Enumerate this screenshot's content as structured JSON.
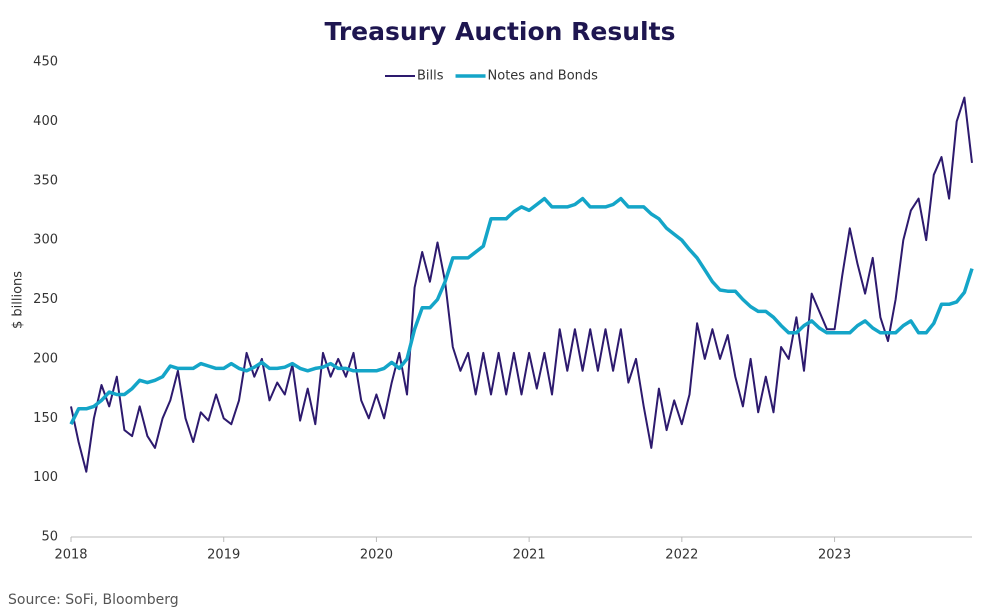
{
  "chart_data": {
    "type": "line",
    "title": "Treasury Auction Results",
    "ylabel": "$ billions",
    "source": "Source: SoFi, Bloomberg",
    "x": [
      2018.0,
      2018.05,
      2018.1,
      2018.15,
      2018.2,
      2018.25,
      2018.3,
      2018.35,
      2018.4,
      2018.45,
      2018.5,
      2018.55,
      2018.6,
      2018.65,
      2018.7,
      2018.75,
      2018.8,
      2018.85,
      2018.9,
      2018.95,
      2019.0,
      2019.05,
      2019.1,
      2019.15,
      2019.2,
      2019.25,
      2019.3,
      2019.35,
      2019.4,
      2019.45,
      2019.5,
      2019.55,
      2019.6,
      2019.65,
      2019.7,
      2019.75,
      2019.8,
      2019.85,
      2019.9,
      2019.95,
      2020.0,
      2020.05,
      2020.1,
      2020.15,
      2020.2,
      2020.25,
      2020.3,
      2020.35,
      2020.4,
      2020.45,
      2020.5,
      2020.55,
      2020.6,
      2020.65,
      2020.7,
      2020.75,
      2020.8,
      2020.85,
      2020.9,
      2020.95,
      2021.0,
      2021.05,
      2021.1,
      2021.15,
      2021.2,
      2021.25,
      2021.3,
      2021.35,
      2021.4,
      2021.45,
      2021.5,
      2021.55,
      2021.6,
      2021.65,
      2021.7,
      2021.75,
      2021.8,
      2021.85,
      2021.9,
      2021.95,
      2022.0,
      2022.05,
      2022.1,
      2022.15,
      2022.2,
      2022.25,
      2022.3,
      2022.35,
      2022.4,
      2022.45,
      2022.5,
      2022.55,
      2022.6,
      2022.65,
      2022.7,
      2022.75,
      2022.8,
      2022.85,
      2022.9,
      2022.95,
      2023.0,
      2023.05,
      2023.1,
      2023.15,
      2023.2,
      2023.25,
      2023.3,
      2023.35,
      2023.4,
      2023.45,
      2023.5,
      2023.55,
      2023.6,
      2023.65,
      2023.7,
      2023.75,
      2023.8,
      2023.85,
      2023.9
    ],
    "series": [
      {
        "name": "Bills",
        "color": "#2d1a6e",
        "width": 2,
        "values": [
          160,
          130,
          105,
          150,
          178,
          160,
          185,
          140,
          135,
          160,
          135,
          125,
          150,
          165,
          190,
          150,
          130,
          155,
          148,
          170,
          150,
          145,
          165,
          205,
          185,
          200,
          165,
          180,
          170,
          195,
          148,
          175,
          145,
          205,
          185,
          200,
          185,
          205,
          165,
          150,
          170,
          150,
          180,
          205,
          170,
          260,
          290,
          265,
          298,
          265,
          210,
          190,
          205,
          170,
          205,
          170,
          205,
          170,
          205,
          170,
          205,
          175,
          205,
          170,
          225,
          190,
          225,
          190,
          225,
          190,
          225,
          190,
          225,
          180,
          200,
          160,
          125,
          175,
          140,
          165,
          145,
          170,
          230,
          200,
          225,
          200,
          220,
          185,
          160,
          200,
          155,
          185,
          155,
          210,
          200,
          235,
          190,
          255,
          240,
          225,
          225,
          270,
          310,
          280,
          255,
          285,
          235,
          215,
          250,
          300,
          325,
          335,
          300,
          355,
          370,
          335,
          400,
          420,
          365
        ]
      },
      {
        "name": "Notes and Bonds",
        "color": "#14a5c8",
        "width": 3.5,
        "values": [
          145,
          158,
          158,
          160,
          165,
          172,
          170,
          170,
          175,
          182,
          180,
          182,
          185,
          194,
          192,
          192,
          192,
          196,
          194,
          192,
          192,
          196,
          192,
          190,
          193,
          197,
          192,
          192,
          193,
          196,
          192,
          190,
          192,
          193,
          196,
          192,
          192,
          190,
          190,
          190,
          190,
          192,
          197,
          192,
          200,
          225,
          243,
          243,
          250,
          265,
          285,
          285,
          285,
          290,
          295,
          318,
          318,
          318,
          324,
          328,
          325,
          330,
          335,
          328,
          328,
          328,
          330,
          335,
          328,
          328,
          328,
          330,
          335,
          328,
          328,
          328,
          322,
          318,
          310,
          305,
          300,
          292,
          285,
          275,
          265,
          258,
          257,
          257,
          250,
          244,
          240,
          240,
          235,
          228,
          222,
          222,
          228,
          232,
          226,
          222,
          222,
          222,
          222,
          228,
          232,
          226,
          222,
          222,
          222,
          228,
          232,
          222,
          222,
          230,
          246,
          246,
          248,
          256,
          276
        ]
      }
    ],
    "xlim": [
      2018,
      2023.9
    ],
    "xticks": [
      2018,
      2019,
      2020,
      2021,
      2022,
      2023
    ],
    "ylim": [
      50,
      450
    ],
    "yticks": [
      50,
      100,
      150,
      200,
      250,
      300,
      350,
      400,
      450
    ],
    "grid": false,
    "legend": "top"
  }
}
